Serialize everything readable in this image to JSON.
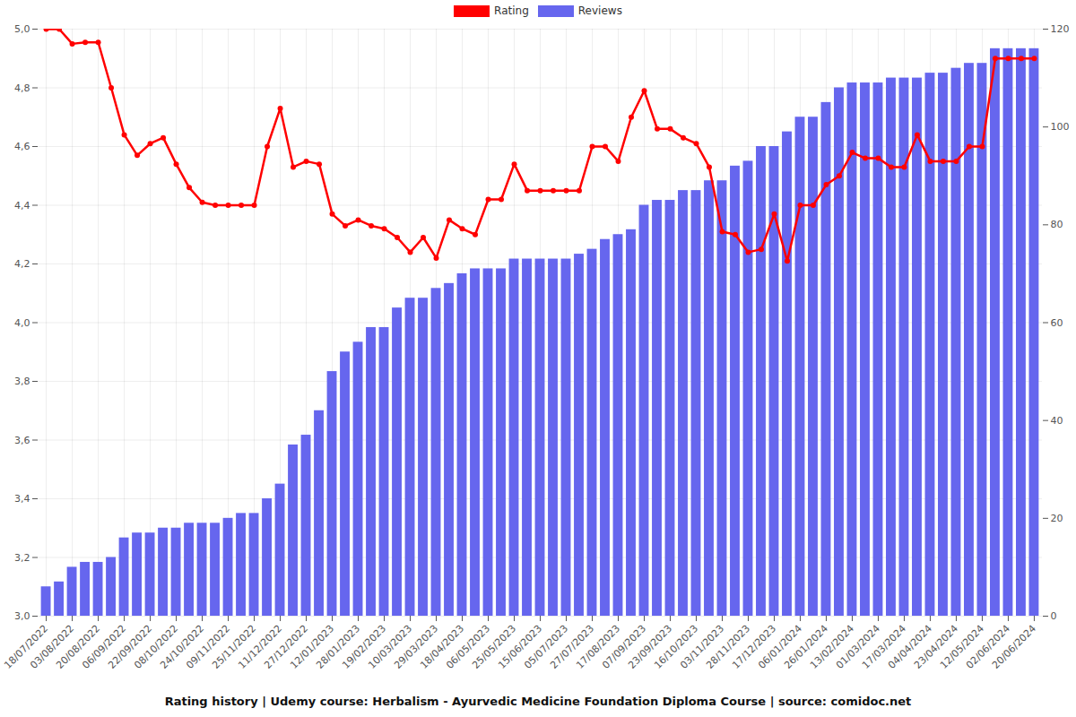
{
  "chart_data": {
    "type": "bar",
    "title": "Rating history | Udemy course: Herbalism - Ayurvedic Medicine Foundation Diploma Course | source: comidoc.net",
    "categories": [
      "18/07/2022",
      null,
      "03/08/2022",
      null,
      "20/08/2022",
      null,
      "06/09/2022",
      null,
      "22/09/2022",
      null,
      "08/10/2022",
      null,
      "24/10/2022",
      null,
      "09/11/2022",
      null,
      "25/11/2022",
      null,
      "11/12/2022",
      null,
      "27/12/2022",
      null,
      "12/01/2023",
      null,
      "28/01/2023",
      null,
      "19/02/2023",
      null,
      "10/03/2023",
      null,
      "29/03/2023",
      null,
      "18/04/2023",
      null,
      "06/05/2023",
      null,
      "25/05/2023",
      null,
      "15/06/2023",
      null,
      "05/07/2023",
      null,
      "27/07/2023",
      null,
      "17/08/2023",
      null,
      "07/09/2023",
      null,
      "23/09/2023",
      null,
      "16/10/2023",
      null,
      "03/11/2023",
      null,
      "28/11/2023",
      null,
      "17/12/2023",
      null,
      "06/01/2024",
      null,
      "26/01/2024",
      null,
      "13/02/2024",
      null,
      "01/03/2024",
      null,
      "17/03/2024",
      null,
      "04/04/2024",
      null,
      "23/04/2024",
      null,
      "12/05/2024",
      null,
      "02/06/2024",
      null,
      "20/06/2024"
    ],
    "series": [
      {
        "name": "Rating",
        "type": "line",
        "color": "#ff0000",
        "marker": "circle",
        "values": [
          5.0,
          5.0,
          4.95,
          4.955,
          4.955,
          4.8,
          4.64,
          4.57,
          4.61,
          4.63,
          4.54,
          4.46,
          4.41,
          4.4,
          4.4,
          4.4,
          4.4,
          4.6,
          4.73,
          4.53,
          4.55,
          4.54,
          4.37,
          4.33,
          4.35,
          4.33,
          4.32,
          4.29,
          4.24,
          4.29,
          4.22,
          4.35,
          4.32,
          4.3,
          4.42,
          4.42,
          4.54,
          4.45,
          4.45,
          4.45,
          4.45,
          4.45,
          4.6,
          4.6,
          4.55,
          4.7,
          4.79,
          4.66,
          4.66,
          4.63,
          4.61,
          4.53,
          4.31,
          4.3,
          4.24,
          4.25,
          4.37,
          4.21,
          4.4,
          4.4,
          4.47,
          4.5,
          4.58,
          4.56,
          4.56,
          4.53,
          4.53,
          4.64,
          4.55,
          4.55,
          4.55,
          4.6,
          4.6,
          4.9,
          4.9,
          4.9,
          4.9
        ]
      },
      {
        "name": "Reviews",
        "type": "bar",
        "axis": "y2",
        "color": "#6666ee",
        "values": [
          6,
          7,
          10,
          11,
          11,
          12,
          16,
          17,
          17,
          18,
          18,
          19,
          19,
          19,
          20,
          21,
          21,
          24,
          27,
          35,
          37,
          42,
          50,
          54,
          56,
          59,
          59,
          63,
          65,
          65,
          67,
          68,
          70,
          71,
          71,
          71,
          73,
          73,
          73,
          73,
          73,
          74,
          75,
          77,
          78,
          79,
          84,
          85,
          85,
          87,
          87,
          89,
          89,
          92,
          93,
          96,
          96,
          99,
          102,
          102,
          105,
          108,
          109,
          109,
          109,
          110,
          110,
          110,
          111,
          111,
          112,
          113,
          113,
          116,
          116,
          116,
          116
        ]
      }
    ],
    "ylim": [
      3.0,
      5.0
    ],
    "yticks": [
      {
        "value": 3.0,
        "label": "3,0"
      },
      {
        "value": 3.2,
        "label": "3,2"
      },
      {
        "value": 3.4,
        "label": "3,4"
      },
      {
        "value": 3.6,
        "label": "3,6"
      },
      {
        "value": 3.8,
        "label": "3,8"
      },
      {
        "value": 4.0,
        "label": "4,0"
      },
      {
        "value": 4.2,
        "label": "4,2"
      },
      {
        "value": 4.4,
        "label": "4,4"
      },
      {
        "value": 4.6,
        "label": "4,6"
      },
      {
        "value": 4.8,
        "label": "4,8"
      },
      {
        "value": 5.0,
        "label": "5,0"
      }
    ],
    "y2lim": [
      0,
      120
    ],
    "y2ticks": [
      0,
      20,
      40,
      60,
      80,
      100,
      120
    ],
    "grid": true,
    "legend": "top"
  }
}
